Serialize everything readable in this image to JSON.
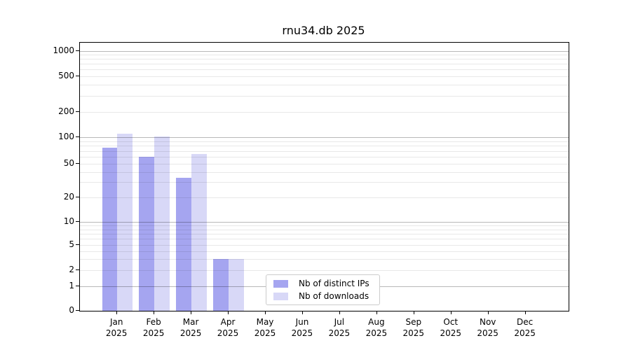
{
  "chart_data": {
    "type": "bar",
    "title": "rnu34.db 2025",
    "categories": [
      "Jan",
      "Feb",
      "Mar",
      "Apr",
      "May",
      "Jun",
      "Jul",
      "Aug",
      "Sep",
      "Oct",
      "Nov",
      "Dec"
    ],
    "category_year_label": "2025",
    "series": [
      {
        "name": "Nb of distinct IPs",
        "color": "#a5a5f0",
        "values": [
          76,
          60,
          34,
          3,
          0,
          0,
          0,
          0,
          0,
          0,
          0,
          0
        ]
      },
      {
        "name": "Nb of downloads",
        "color": "#d8d8f7",
        "values": [
          110,
          102,
          65,
          3,
          0,
          0,
          0,
          0,
          0,
          0,
          0,
          0
        ]
      }
    ],
    "y_axis": {
      "scale": "log-like-with-zero-baseline",
      "labeled_ticks": [
        0,
        1,
        2,
        5,
        10,
        20,
        50,
        100,
        200,
        500,
        1000
      ],
      "major_ticks": [
        1,
        10,
        100,
        1000
      ],
      "ylim": [
        0,
        1200
      ]
    },
    "x_axis": {
      "tick_label_format": "month over year"
    },
    "legend": {
      "position": "lower center"
    },
    "grid": {
      "major_color": "#b4b4b4",
      "minor_color": "#e8e8e8",
      "minor_multiples": [
        3,
        4,
        6,
        7,
        8,
        9
      ]
    }
  }
}
